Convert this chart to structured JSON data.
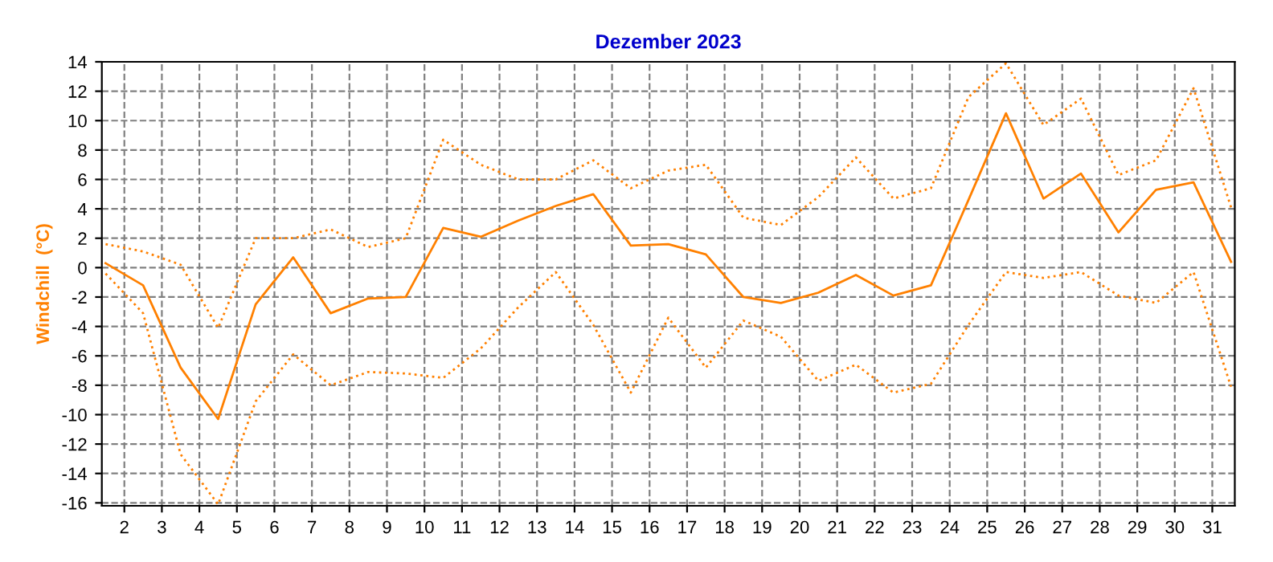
{
  "chart_data": {
    "type": "line",
    "title": "Dezember 2023",
    "ylabel": "Windchill  (°C)",
    "x": [
      1.5,
      2.5,
      3.5,
      4.5,
      5.5,
      6.5,
      7.5,
      8.5,
      9.5,
      10.5,
      11.5,
      12.5,
      13.5,
      14.5,
      15.5,
      16.5,
      17.5,
      18.5,
      19.5,
      20.5,
      21.5,
      22.5,
      23.5,
      24.5,
      25.5,
      26.5,
      27.5,
      28.5,
      29.5,
      30.5,
      31.5
    ],
    "series": [
      {
        "color": "#ff8000",
        "line_style": "solid",
        "values": [
          0.3,
          -1.2,
          -6.8,
          -10.3,
          -2.5,
          0.7,
          -3.1,
          -2.1,
          -2.0,
          2.7,
          2.1,
          3.2,
          4.2,
          5.0,
          1.5,
          1.6,
          0.9,
          -2.0,
          -2.4,
          -1.7,
          -0.5,
          -1.9,
          -1.2,
          4.6,
          10.5,
          4.7,
          6.4,
          2.4,
          5.3,
          5.8,
          0.4
        ]
      },
      {
        "color": "#ff8000",
        "line_style": "dotted",
        "values": [
          1.6,
          1.1,
          0.2,
          -4.1,
          2.0,
          2.0,
          2.6,
          1.4,
          2.0,
          8.7,
          7.0,
          6.0,
          6.0,
          7.3,
          5.4,
          6.6,
          7.0,
          3.4,
          2.9,
          4.8,
          7.5,
          4.7,
          5.4,
          11.6,
          13.9,
          9.7,
          11.5,
          6.3,
          7.3,
          12.2,
          4.1
        ]
      },
      {
        "color": "#ff8000",
        "line_style": "dotted",
        "values": [
          -0.4,
          -3.1,
          -12.7,
          -16.1,
          -9.1,
          -5.9,
          -8.0,
          -7.1,
          -7.2,
          -7.5,
          -5.5,
          -2.7,
          -0.3,
          -3.9,
          -8.5,
          -3.4,
          -6.8,
          -3.6,
          -4.7,
          -7.7,
          -6.6,
          -8.5,
          -7.9,
          -3.9,
          -0.3,
          -0.7,
          -0.3,
          -1.9,
          -2.4,
          -0.3,
          -8.1
        ]
      }
    ],
    "xlim": [
      1.4,
      31.6
    ],
    "xticks": [
      2,
      3,
      4,
      5,
      6,
      7,
      8,
      9,
      10,
      11,
      12,
      13,
      14,
      15,
      16,
      17,
      18,
      19,
      20,
      21,
      22,
      23,
      24,
      25,
      26,
      27,
      28,
      29,
      30,
      31
    ],
    "ylim": [
      -16.2,
      14
    ],
    "yticks": [
      -16,
      -14,
      -12,
      -10,
      -8,
      -6,
      -4,
      -2,
      0,
      2,
      4,
      6,
      8,
      10,
      12,
      14
    ],
    "grid": true,
    "legend": false
  }
}
